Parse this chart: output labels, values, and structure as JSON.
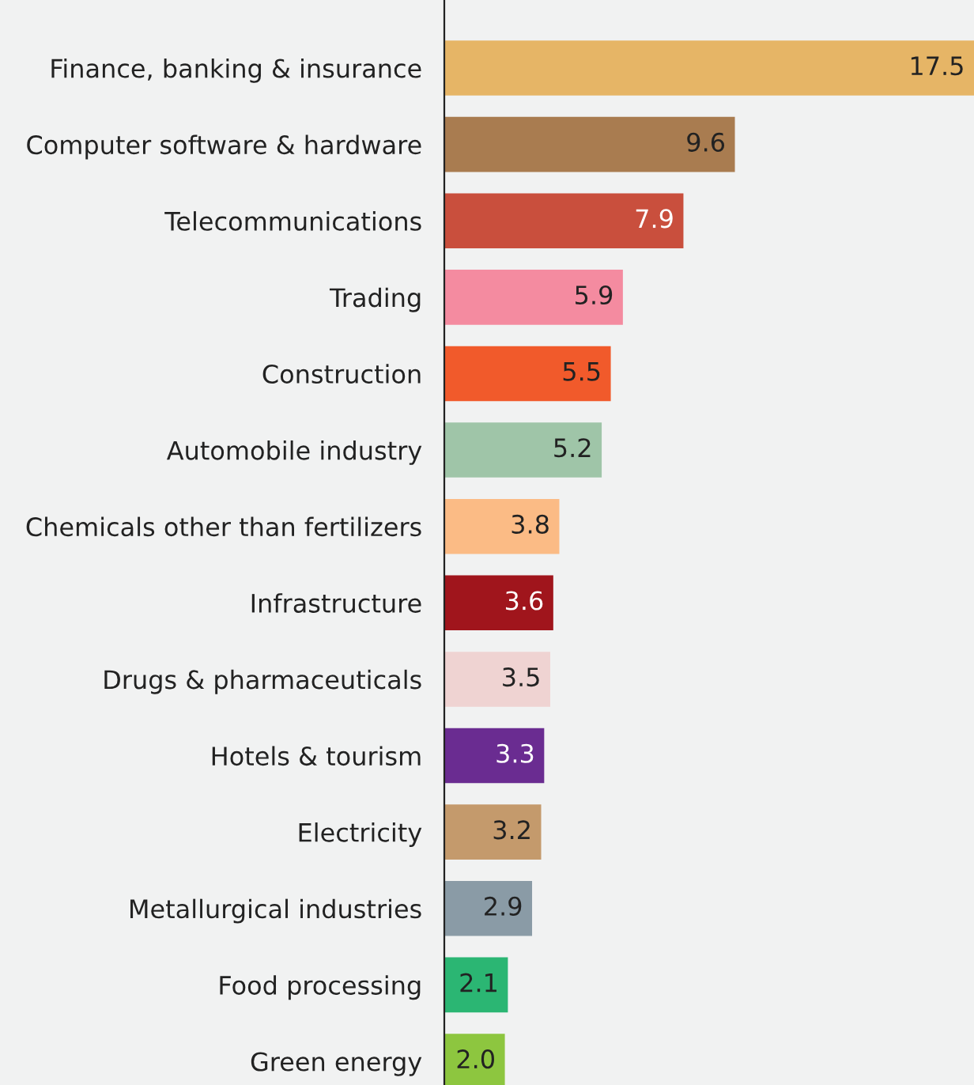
{
  "chart_data": {
    "type": "bar",
    "orientation": "horizontal",
    "value_labels": [
      "17.5",
      "9.6",
      "7.9",
      "5.9",
      "5.5",
      "5.2",
      "3.8",
      "3.6",
      "3.5",
      "3.3",
      "3.2",
      "2.9",
      "2.1",
      "2.0"
    ],
    "grid": false,
    "legend": false,
    "tick_labels": "y",
    "xlim": [
      0,
      17.5
    ],
    "categories": [
      "Finance, banking & insurance",
      "Computer software & hardware",
      "Telecommunications",
      "Trading",
      "Construction",
      "Automobile industry",
      "Chemicals other than fertilizers",
      "Infrastructure",
      "Drugs & pharmaceuticals",
      "Hotels & tourism",
      "Electricity",
      "Metallurgical industries",
      "Food processing",
      "Green energy"
    ],
    "values": [
      17.5,
      9.6,
      7.9,
      5.9,
      5.5,
      5.2,
      3.8,
      3.6,
      3.5,
      3.3,
      3.2,
      2.9,
      2.1,
      2.0
    ],
    "colors": [
      "#e6b566",
      "#a97c50",
      "#c94f3d",
      "#f48ba0",
      "#f15a2b",
      "#9fc5a8",
      "#fbbb85",
      "#a0151c",
      "#efd3d2",
      "#6a2c91",
      "#c49a6c",
      "#8a9ba6",
      "#2bb673",
      "#8dc63f"
    ]
  }
}
